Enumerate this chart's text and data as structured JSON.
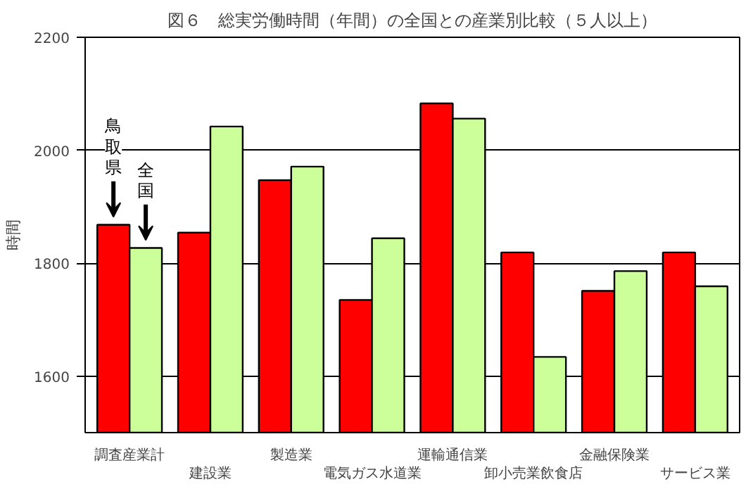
{
  "chart_data": {
    "type": "bar",
    "title": "図６　総実労働時間（年間）の全国との産業別比較（５人以上）",
    "ylabel": "時間",
    "categories": [
      "調査産業計",
      "建設業",
      "製造業",
      "電気ガス水道業",
      "運輸通信業",
      "卸小売業飲食店",
      "金融保険業",
      "サービス業"
    ],
    "series": [
      {
        "name": "鳥取県",
        "color": "#ff0000",
        "values": [
          1868,
          1854,
          1947,
          1735,
          2083,
          1819,
          1751,
          1819
        ]
      },
      {
        "name": "全国",
        "color": "#ccff99",
        "values": [
          1827,
          2042,
          1971,
          1844,
          2056,
          1634,
          1786,
          1759
        ]
      }
    ],
    "ylim": [
      1500,
      2200
    ],
    "yticks": [
      1600,
      1800,
      2000,
      2200
    ],
    "grid": "y"
  }
}
